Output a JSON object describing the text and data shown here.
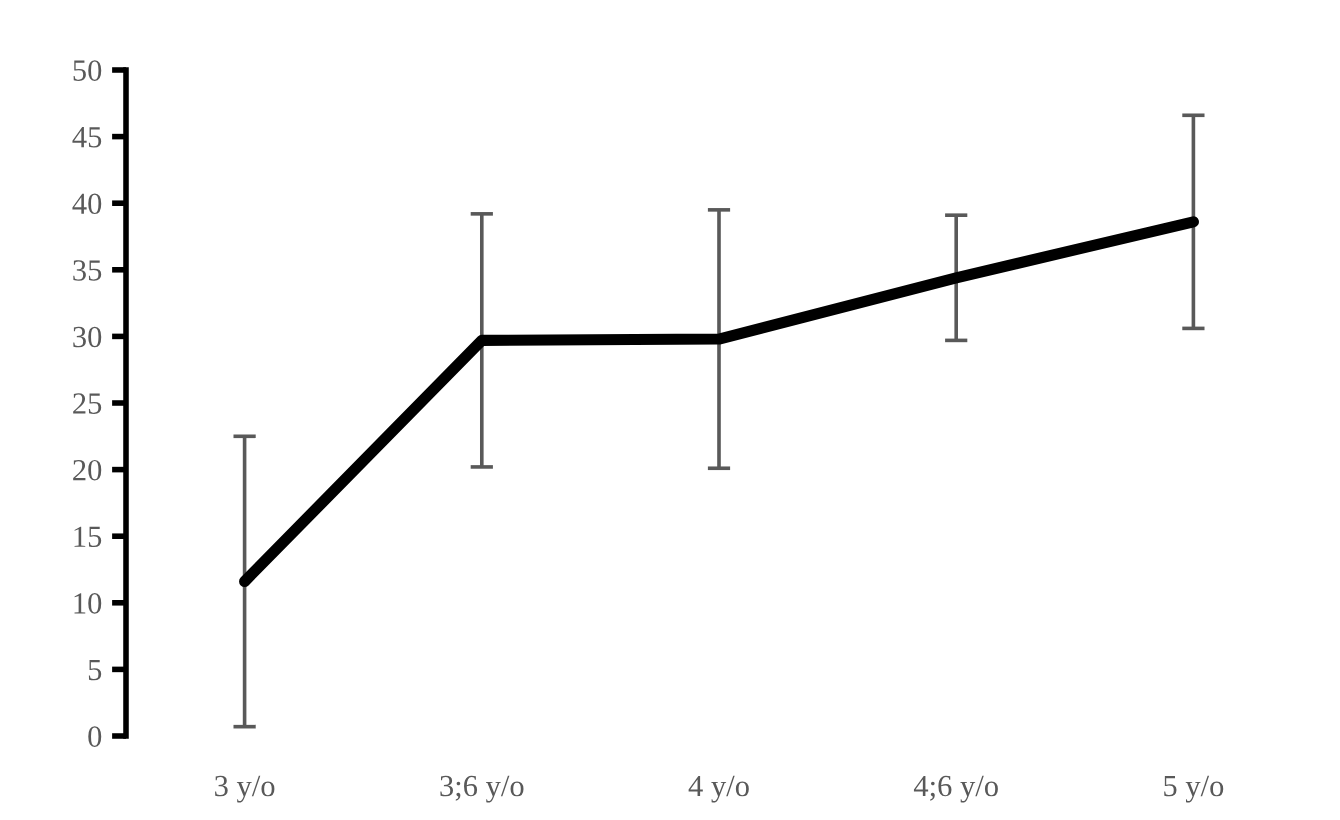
{
  "chart_data": {
    "type": "line",
    "categories": [
      "3 y/o",
      "3;6 y/o",
      "4 y/o",
      "4;6 y/o",
      "5 y/o"
    ],
    "series": [
      {
        "color": "#000000",
        "values": [
          11.6,
          29.7,
          29.8,
          34.4,
          38.6
        ],
        "errors": [
          10.9,
          9.5,
          9.7,
          4.7,
          8.0
        ]
      }
    ],
    "ylim": [
      0,
      50
    ],
    "yticks": [
      0,
      5,
      10,
      15,
      20,
      25,
      30,
      35,
      40,
      45,
      50
    ],
    "grid": false,
    "legend": false,
    "marker": "none",
    "line_style": "solid"
  }
}
